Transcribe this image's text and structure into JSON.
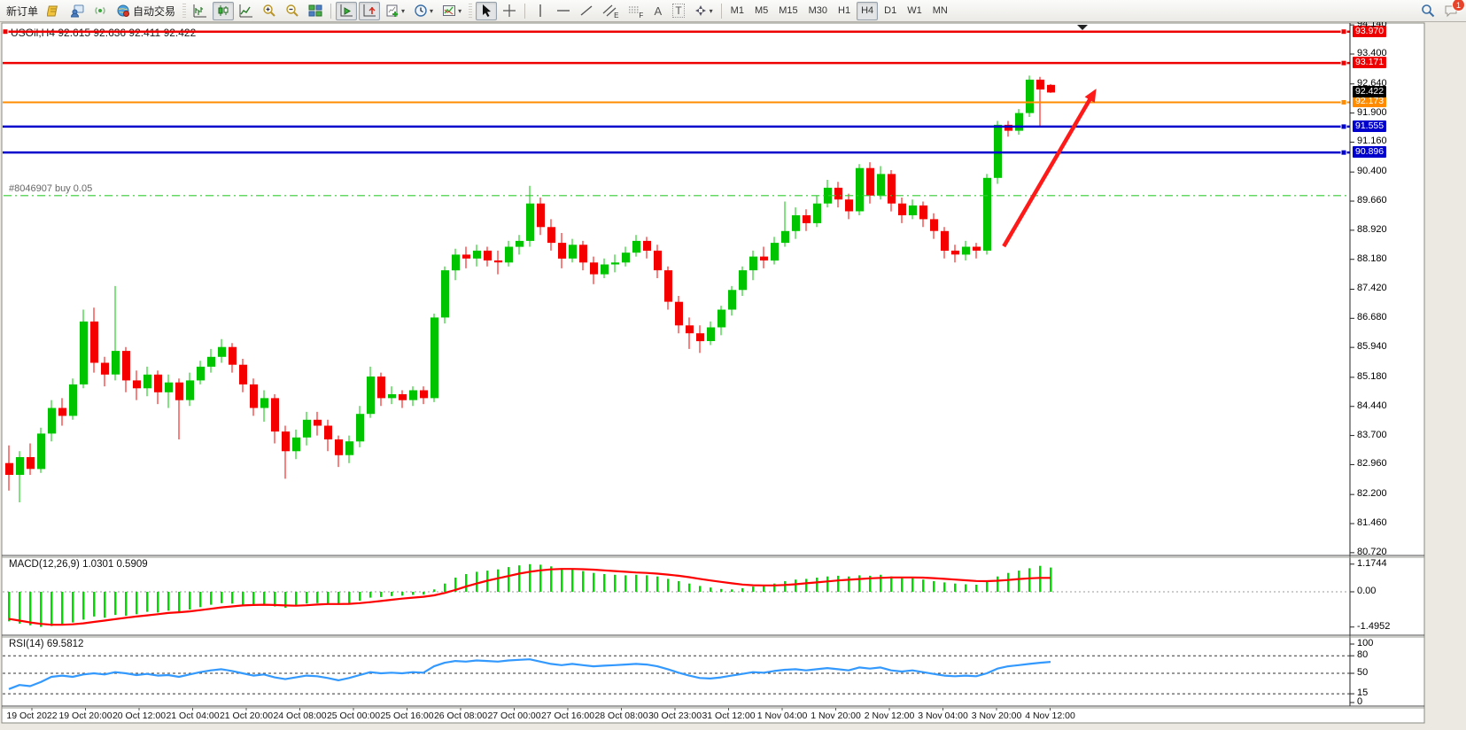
{
  "toolbar": {
    "new_order_label": "新订单",
    "autotrading_label": "自动交易",
    "timeframes": [
      "M1",
      "M5",
      "M15",
      "M30",
      "H1",
      "H4",
      "D1",
      "W1",
      "MN"
    ],
    "active_timeframe": "H4",
    "notification_badge": "1",
    "glyphs": {
      "text_tool": "A",
      "label_tool": "T",
      "channel_tool": "E",
      "fibo_tool": "F"
    }
  },
  "chart": {
    "title": "USOil,H4  92.615 92.636 92.411 92.422",
    "symbol": "USOil",
    "period": "H4",
    "position_label": "#8046907 buy 0.05",
    "bid_label": "92.422"
  },
  "colors": {
    "bull": "#00c400",
    "bear": "#f40000",
    "macd_hist": "#00d800",
    "macd_signal": "#ff0000",
    "rsi_line": "#3399ff",
    "line_red": "#ee0000",
    "line_orange": "#ff8c00",
    "line_blue": "#0000cc",
    "position_green": "#33cc33",
    "bid_bg": "#000000",
    "arrow_red": "#ff1a1a"
  },
  "chart_data": {
    "type": "candlestick",
    "title": "USOil,H4  92.615 92.636 92.411 92.422",
    "ohlc_current": {
      "o": 92.615,
      "h": 92.636,
      "l": 92.411,
      "c": 92.422
    },
    "price_axis_ticks": [
      94.14,
      93.4,
      92.64,
      91.9,
      91.16,
      90.4,
      89.66,
      88.92,
      88.18,
      87.42,
      86.68,
      85.94,
      85.18,
      84.44,
      83.7,
      82.96,
      82.2,
      81.46,
      80.72
    ],
    "x_axis_labels": [
      "19 Oct 2022",
      "19 Oct 20:00",
      "20 Oct 12:00",
      "21 Oct 04:00",
      "21 Oct 20:00",
      "24 Oct 08:00",
      "25 Oct 00:00",
      "25 Oct 16:00",
      "26 Oct 08:00",
      "27 Oct 00:00",
      "27 Oct 16:00",
      "28 Oct 08:00",
      "30 Oct 23:00",
      "31 Oct 12:00",
      "1 Nov 04:00",
      "1 Nov 20:00",
      "2 Nov 12:00",
      "3 Nov 04:00",
      "3 Nov 20:00",
      "4 Nov 12:00"
    ],
    "horizontal_lines": [
      {
        "price": 93.97,
        "label": "93.970",
        "color": "#ee0000",
        "width": 2.5
      },
      {
        "price": 93.171,
        "label": "93.171",
        "color": "#ee0000",
        "width": 2.5
      },
      {
        "price": 92.173,
        "label": "92.173",
        "color": "#ff8c00",
        "width": 2
      },
      {
        "price": 91.555,
        "label": "91.555",
        "color": "#0000cc",
        "width": 2.5
      },
      {
        "price": 90.896,
        "label": "90.896",
        "color": "#0000cc",
        "width": 2.5
      }
    ],
    "bid": {
      "price": 92.422,
      "label": "92.422"
    },
    "position_line": {
      "price": 89.8,
      "label": "#8046907 buy 0.05"
    },
    "trend_arrow": {
      "from_candle": 93.6,
      "from_price": 88.51,
      "to_candle": 102.3,
      "to_price": 92.52
    },
    "candles": [
      [
        83.0,
        83.45,
        82.3,
        82.7
      ],
      [
        82.7,
        83.3,
        82.0,
        83.15
      ],
      [
        83.15,
        83.5,
        82.7,
        82.85
      ],
      [
        82.85,
        83.9,
        82.75,
        83.75
      ],
      [
        83.75,
        84.6,
        83.55,
        84.4
      ],
      [
        84.4,
        84.65,
        83.95,
        84.2
      ],
      [
        84.2,
        85.15,
        84.1,
        85.0
      ],
      [
        85.0,
        86.9,
        84.9,
        86.6
      ],
      [
        86.6,
        86.95,
        85.3,
        85.55
      ],
      [
        85.55,
        85.7,
        84.95,
        85.25
      ],
      [
        85.25,
        87.5,
        85.1,
        85.85
      ],
      [
        85.85,
        85.95,
        84.8,
        85.1
      ],
      [
        85.1,
        85.35,
        84.6,
        84.9
      ],
      [
        84.9,
        85.45,
        84.7,
        85.25
      ],
      [
        85.25,
        85.35,
        84.5,
        84.8
      ],
      [
        84.8,
        85.25,
        84.4,
        85.05
      ],
      [
        85.05,
        85.15,
        83.6,
        84.6
      ],
      [
        84.6,
        85.3,
        84.45,
        85.1
      ],
      [
        85.1,
        85.6,
        85.0,
        85.45
      ],
      [
        85.45,
        85.9,
        85.3,
        85.7
      ],
      [
        85.7,
        86.15,
        85.55,
        85.95
      ],
      [
        85.95,
        86.05,
        85.3,
        85.5
      ],
      [
        85.5,
        85.65,
        84.8,
        85.0
      ],
      [
        85.0,
        85.15,
        84.2,
        84.4
      ],
      [
        84.4,
        84.85,
        84.05,
        84.65
      ],
      [
        84.65,
        84.75,
        83.5,
        83.8
      ],
      [
        83.8,
        83.95,
        82.6,
        83.3
      ],
      [
        83.3,
        83.85,
        83.1,
        83.65
      ],
      [
        83.65,
        84.3,
        83.45,
        84.1
      ],
      [
        84.1,
        84.3,
        83.7,
        83.95
      ],
      [
        83.95,
        84.1,
        83.3,
        83.6
      ],
      [
        83.6,
        83.7,
        82.9,
        83.2
      ],
      [
        83.2,
        83.7,
        83.0,
        83.55
      ],
      [
        83.55,
        84.45,
        83.4,
        84.25
      ],
      [
        84.25,
        85.45,
        84.15,
        85.2
      ],
      [
        85.2,
        85.3,
        84.45,
        84.65
      ],
      [
        84.65,
        84.95,
        84.5,
        84.75
      ],
      [
        84.75,
        84.85,
        84.4,
        84.6
      ],
      [
        84.6,
        84.95,
        84.45,
        84.85
      ],
      [
        84.85,
        84.95,
        84.5,
        84.65
      ],
      [
        84.65,
        86.8,
        84.55,
        86.7
      ],
      [
        86.7,
        88.0,
        86.55,
        87.9
      ],
      [
        87.9,
        88.45,
        87.65,
        88.3
      ],
      [
        88.3,
        88.5,
        87.95,
        88.2
      ],
      [
        88.2,
        88.55,
        88.0,
        88.4
      ],
      [
        88.4,
        88.5,
        88.0,
        88.15
      ],
      [
        88.15,
        88.4,
        87.8,
        88.1
      ],
      [
        88.1,
        88.65,
        88.0,
        88.5
      ],
      [
        88.5,
        88.8,
        88.3,
        88.65
      ],
      [
        88.65,
        90.05,
        88.5,
        89.6
      ],
      [
        89.6,
        89.75,
        88.8,
        89.0
      ],
      [
        89.0,
        89.2,
        88.4,
        88.6
      ],
      [
        88.6,
        88.85,
        87.95,
        88.2
      ],
      [
        88.2,
        88.7,
        88.1,
        88.55
      ],
      [
        88.55,
        88.65,
        87.9,
        88.1
      ],
      [
        88.1,
        88.25,
        87.55,
        87.8
      ],
      [
        87.8,
        88.2,
        87.7,
        88.05
      ],
      [
        88.05,
        88.3,
        87.85,
        88.1
      ],
      [
        88.1,
        88.5,
        88.0,
        88.35
      ],
      [
        88.35,
        88.8,
        88.25,
        88.65
      ],
      [
        88.65,
        88.75,
        88.2,
        88.4
      ],
      [
        88.4,
        88.55,
        87.7,
        87.9
      ],
      [
        87.9,
        88.0,
        86.9,
        87.1
      ],
      [
        87.1,
        87.25,
        86.3,
        86.5
      ],
      [
        86.5,
        86.7,
        85.9,
        86.3
      ],
      [
        86.3,
        86.5,
        85.8,
        86.1
      ],
      [
        86.1,
        86.6,
        86.0,
        86.45
      ],
      [
        86.45,
        87.0,
        86.25,
        86.9
      ],
      [
        86.9,
        87.5,
        86.75,
        87.4
      ],
      [
        87.4,
        88.0,
        87.25,
        87.9
      ],
      [
        87.9,
        88.4,
        87.65,
        88.25
      ],
      [
        88.25,
        88.5,
        87.95,
        88.15
      ],
      [
        88.15,
        88.75,
        88.05,
        88.6
      ],
      [
        88.6,
        89.65,
        88.5,
        88.9
      ],
      [
        88.9,
        89.5,
        88.7,
        89.3
      ],
      [
        89.3,
        89.45,
        88.9,
        89.1
      ],
      [
        89.1,
        89.8,
        89.0,
        89.6
      ],
      [
        89.6,
        90.2,
        89.5,
        90.0
      ],
      [
        90.0,
        90.15,
        89.5,
        89.7
      ],
      [
        89.7,
        89.85,
        89.2,
        89.4
      ],
      [
        89.4,
        90.6,
        89.3,
        90.5
      ],
      [
        90.5,
        90.65,
        89.6,
        89.8
      ],
      [
        89.8,
        90.55,
        89.7,
        90.35
      ],
      [
        90.35,
        90.45,
        89.4,
        89.6
      ],
      [
        89.6,
        89.75,
        89.1,
        89.3
      ],
      [
        89.3,
        89.7,
        89.2,
        89.55
      ],
      [
        89.55,
        89.65,
        89.0,
        89.2
      ],
      [
        89.2,
        89.35,
        88.7,
        88.9
      ],
      [
        88.9,
        89.0,
        88.2,
        88.4
      ],
      [
        88.4,
        88.55,
        88.1,
        88.3
      ],
      [
        88.3,
        88.65,
        88.15,
        88.5
      ],
      [
        88.5,
        88.6,
        88.2,
        88.4
      ],
      [
        88.4,
        90.35,
        88.3,
        90.25
      ],
      [
        90.25,
        91.7,
        90.1,
        91.6
      ],
      [
        91.6,
        91.7,
        91.3,
        91.45
      ],
      [
        91.45,
        92.0,
        91.35,
        91.9
      ],
      [
        91.9,
        92.85,
        91.8,
        92.75
      ],
      [
        92.75,
        92.82,
        91.55,
        92.5
      ],
      [
        92.615,
        92.636,
        92.411,
        92.422
      ]
    ],
    "macd": {
      "label": "MACD(12,26,9) 1.0301 0.5909",
      "value": 1.0301,
      "signal_value": 0.5909,
      "scale_labels": [
        "1.1744",
        "0.00",
        "-1.4952"
      ],
      "scale_values": [
        1.1744,
        0.0,
        -1.4952
      ],
      "histogram": [
        -1.25,
        -1.35,
        -1.42,
        -1.49,
        -1.45,
        -1.38,
        -1.3,
        -1.18,
        -1.05,
        -1.1,
        -0.98,
        -1.02,
        -0.95,
        -0.85,
        -0.88,
        -0.8,
        -0.85,
        -0.75,
        -0.65,
        -0.55,
        -0.48,
        -0.5,
        -0.55,
        -0.6,
        -0.55,
        -0.62,
        -0.68,
        -0.6,
        -0.5,
        -0.48,
        -0.52,
        -0.55,
        -0.48,
        -0.38,
        -0.25,
        -0.22,
        -0.18,
        -0.16,
        -0.13,
        -0.12,
        0.1,
        0.35,
        0.6,
        0.75,
        0.85,
        0.9,
        0.95,
        1.05,
        1.12,
        1.1744,
        1.15,
        1.08,
        1.0,
        0.95,
        0.88,
        0.8,
        0.75,
        0.72,
        0.7,
        0.72,
        0.7,
        0.65,
        0.55,
        0.45,
        0.35,
        0.25,
        0.18,
        0.12,
        0.1,
        0.15,
        0.22,
        0.28,
        0.35,
        0.45,
        0.52,
        0.55,
        0.6,
        0.65,
        0.68,
        0.65,
        0.7,
        0.68,
        0.72,
        0.65,
        0.6,
        0.58,
        0.52,
        0.45,
        0.4,
        0.35,
        0.32,
        0.3,
        0.45,
        0.65,
        0.8,
        0.9,
        1.0,
        1.1,
        1.0301
      ],
      "signal": [
        -1.15,
        -1.22,
        -1.3,
        -1.36,
        -1.4,
        -1.4,
        -1.38,
        -1.34,
        -1.28,
        -1.22,
        -1.16,
        -1.1,
        -1.05,
        -1.0,
        -0.95,
        -0.9,
        -0.87,
        -0.83,
        -0.78,
        -0.72,
        -0.66,
        -0.62,
        -0.58,
        -0.56,
        -0.55,
        -0.56,
        -0.58,
        -0.59,
        -0.57,
        -0.54,
        -0.52,
        -0.52,
        -0.51,
        -0.48,
        -0.44,
        -0.39,
        -0.34,
        -0.29,
        -0.25,
        -0.21,
        -0.15,
        -0.05,
        0.08,
        0.22,
        0.35,
        0.47,
        0.57,
        0.67,
        0.77,
        0.85,
        0.91,
        0.95,
        0.97,
        0.97,
        0.96,
        0.94,
        0.91,
        0.88,
        0.85,
        0.82,
        0.8,
        0.77,
        0.73,
        0.68,
        0.62,
        0.55,
        0.48,
        0.42,
        0.36,
        0.31,
        0.28,
        0.27,
        0.27,
        0.29,
        0.32,
        0.36,
        0.4,
        0.44,
        0.48,
        0.51,
        0.54,
        0.57,
        0.59,
        0.61,
        0.61,
        0.61,
        0.6,
        0.58,
        0.55,
        0.52,
        0.49,
        0.46,
        0.45,
        0.47,
        0.5,
        0.54,
        0.57,
        0.59,
        0.5909
      ]
    },
    "rsi": {
      "label": "RSI(14) 69.5812",
      "value": 69.5812,
      "levels": [
        80,
        50,
        15
      ],
      "scale_labels": [
        "100",
        "80",
        "50",
        "15",
        "0"
      ],
      "values": [
        23,
        30,
        28,
        35,
        44,
        46,
        44,
        48,
        50,
        48,
        52,
        50,
        47,
        49,
        46,
        47,
        44,
        48,
        52,
        55,
        57,
        54,
        50,
        46,
        48,
        43,
        40,
        43,
        46,
        45,
        42,
        38,
        42,
        47,
        52,
        50,
        51,
        50,
        52,
        51,
        62,
        68,
        71,
        70,
        72,
        71,
        70,
        72,
        73,
        74,
        70,
        66,
        64,
        66,
        64,
        62,
        63,
        64,
        65,
        66,
        65,
        62,
        57,
        51,
        46,
        42,
        41,
        43,
        46,
        49,
        52,
        51,
        54,
        56,
        57,
        55,
        57,
        59,
        57,
        55,
        60,
        58,
        60,
        55,
        53,
        55,
        52,
        49,
        46,
        45,
        46,
        45,
        50,
        58,
        62,
        64,
        66,
        68,
        69.58
      ]
    }
  }
}
